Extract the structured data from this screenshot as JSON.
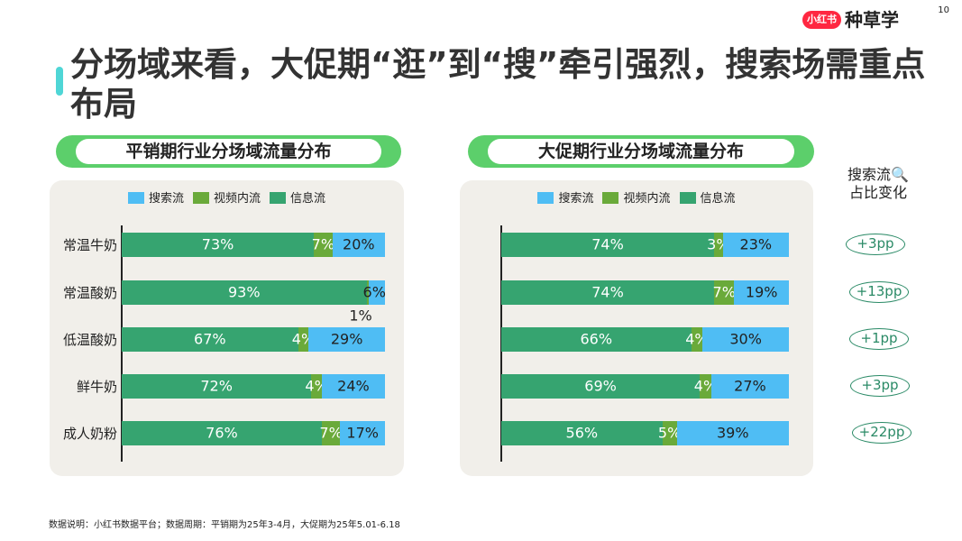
{
  "page_number": "10",
  "title": "分场域来看，大促期“逛”到“搜”牵引强烈，搜索场需重点布局",
  "logo": {
    "badge": "小红书",
    "text": "种草学"
  },
  "colors": {
    "search": "#4fbdf4",
    "video": "#6aaa3a",
    "feed": "#36a470",
    "pill": "#5ccf6b",
    "panel": "#f1efea"
  },
  "legend": [
    "搜索流",
    "视频内流",
    "信息流"
  ],
  "chart_data": [
    {
      "type": "bar",
      "stacked": true,
      "orientation": "horizontal",
      "title": "平销期行业分场域流量分布",
      "categories": [
        "常温牛奶",
        "常温酸奶",
        "低温酸奶",
        "鲜牛奶",
        "成人奶粉"
      ],
      "series": [
        {
          "name": "信息流",
          "values": [
            73,
            93,
            67,
            72,
            76
          ]
        },
        {
          "name": "视频内流",
          "values": [
            7,
            1,
            4,
            4,
            7
          ]
        },
        {
          "name": "搜索流",
          "values": [
            20,
            6,
            29,
            24,
            17
          ]
        }
      ],
      "unit": "%",
      "xlim": [
        0,
        100
      ]
    },
    {
      "type": "bar",
      "stacked": true,
      "orientation": "horizontal",
      "title": "大促期行业分场域流量分布",
      "categories": [
        "常温牛奶",
        "常温酸奶",
        "低温酸奶",
        "鲜牛奶",
        "成人奶粉"
      ],
      "series": [
        {
          "name": "信息流",
          "values": [
            74,
            74,
            66,
            69,
            56
          ]
        },
        {
          "name": "视频内流",
          "values": [
            3,
            7,
            4,
            4,
            5
          ]
        },
        {
          "name": "搜索流",
          "values": [
            23,
            19,
            30,
            27,
            39
          ]
        }
      ],
      "unit": "%",
      "xlim": [
        0,
        100
      ]
    }
  ],
  "side": {
    "heading_1": "搜索流",
    "heading_2": "占比变化",
    "icon": "magnifier-icon",
    "changes": [
      "+3pp",
      "+13pp",
      "+1pp",
      "+3pp",
      "+22pp"
    ]
  },
  "note": "数据说明：小红书数据平台；数据周期：平销期为25年3-4月，大促期为25年5.01-6.18"
}
